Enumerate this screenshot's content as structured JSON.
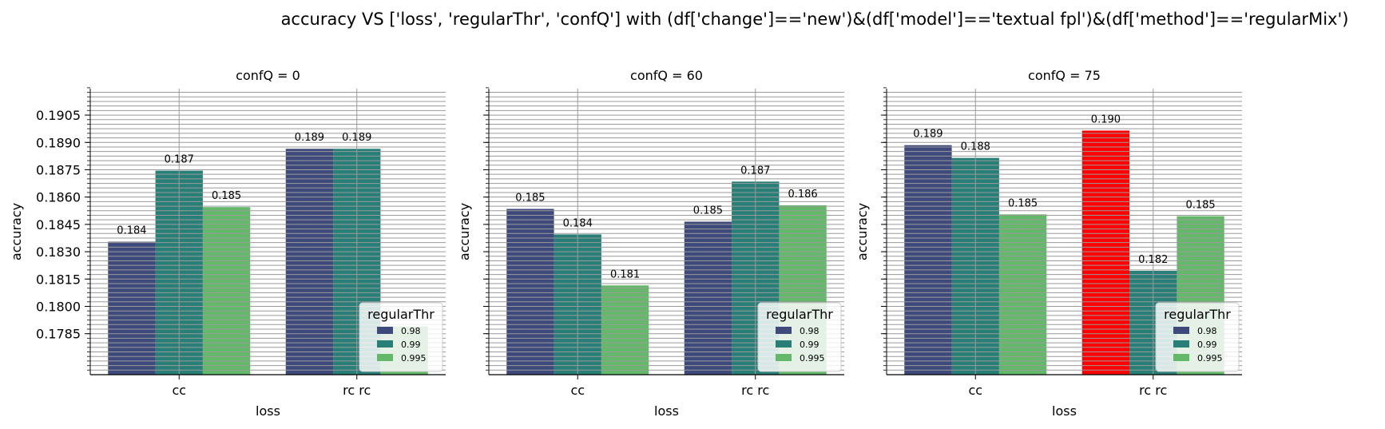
{
  "chart_data": {
    "type": "bar",
    "title": "accuracy VS ['loss', 'regularThr', 'confQ'] with (df['change']=='new')&(df['model']=='textual fpl')&(df['method']=='regularMix')",
    "xlabel": "loss",
    "ylabel": "accuracy",
    "categories": [
      "cc",
      "rc rc"
    ],
    "ylim": [
      0.17625,
      0.19195
    ],
    "yticks": [
      "0.1785",
      "0.1800",
      "0.1815",
      "0.1830",
      "0.1845",
      "0.1860",
      "0.1875",
      "0.1890",
      "0.1905"
    ],
    "grid": true,
    "legend": {
      "title": "regularThr",
      "location": "lower-right",
      "entries": [
        "0.98",
        "0.99",
        "0.995"
      ]
    },
    "colors": {
      "0.98": "#3f4a7c",
      "0.99": "#277f77",
      "0.995": "#63b86a",
      "highlight": "#ff0000"
    },
    "panels": [
      {
        "title": "confQ = 0",
        "series": [
          {
            "name": "0.98",
            "values": [
              0.18355,
              0.18865
            ],
            "labels": [
              "0.184",
              "0.189"
            ]
          },
          {
            "name": "0.99",
            "values": [
              0.18745,
              0.18865
            ],
            "labels": [
              "0.187",
              "0.189"
            ]
          },
          {
            "name": "0.995",
            "values": [
              0.18545,
              0.1789
            ],
            "labels": [
              "0.185",
              ""
            ]
          }
        ]
      },
      {
        "title": "confQ = 60",
        "series": [
          {
            "name": "0.98",
            "values": [
              0.18535,
              0.18465
            ],
            "labels": [
              "0.185",
              "0.185"
            ]
          },
          {
            "name": "0.99",
            "values": [
              0.18395,
              0.18685
            ],
            "labels": [
              "0.184",
              "0.187"
            ]
          },
          {
            "name": "0.995",
            "values": [
              0.18115,
              0.18555
            ],
            "labels": [
              "0.181",
              "0.186"
            ]
          }
        ]
      },
      {
        "title": "confQ = 75",
        "series": [
          {
            "name": "0.98",
            "values": [
              0.18885,
              0.18965
            ],
            "labels": [
              "0.189",
              "0.190"
            ]
          },
          {
            "name": "0.99",
            "values": [
              0.18815,
              0.18195
            ],
            "labels": [
              "0.188",
              "0.182"
            ]
          },
          {
            "name": "0.995",
            "values": [
              0.18505,
              0.18495
            ],
            "labels": [
              "0.185",
              "0.185"
            ]
          }
        ]
      }
    ],
    "highlight": {
      "panel": "confQ = 75",
      "series": "0.98",
      "category": "rc rc",
      "value": 0.18965
    }
  }
}
